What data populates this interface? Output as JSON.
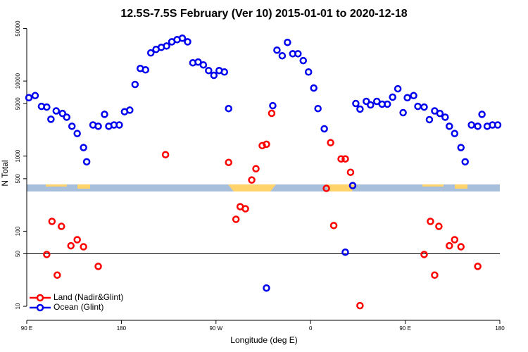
{
  "chart_data": {
    "type": "scatter",
    "title": "12.5S-7.5S February (Ver 10)   2015-01-01 to 2020-12-18",
    "x_label": "Longitude (deg E)",
    "y_label": "N Total",
    "log_y": true,
    "xlim": [
      90,
      540
    ],
    "ylim": [
      6.5,
      54000
    ],
    "xticks": [
      {
        "value": 90,
        "label": "90 E"
      },
      180,
      {
        "value": 270,
        "label": "90 W"
      },
      {
        "value": 360,
        "label": "0"
      },
      {
        "value": 450,
        "label": "90 E"
      },
      {
        "value": 540,
        "label": "180"
      }
    ],
    "yticks": [
      10,
      50,
      100,
      500,
      1000,
      5000,
      10000,
      50000
    ],
    "reference_line": 50,
    "legend": "bottom-left",
    "series": [
      {
        "name": "Land (Nadir&Glint)",
        "color": "#ff0000",
        "x": [
          109,
          114,
          119,
          123,
          132,
          138,
          144,
          158,
          222,
          282,
          289,
          293,
          298,
          304,
          308,
          314,
          318,
          323,
          375,
          379,
          382,
          389,
          393,
          398,
          407,
          468,
          474,
          478,
          482,
          492,
          497,
          503,
          519
        ],
        "values": [
          49,
          135,
          26,
          116,
          64,
          77,
          62,
          34,
          1045,
          824,
          144,
          212,
          199,
          481,
          679,
          1380,
          1440,
          3720,
          372,
          1510,
          119,
          918,
          918,
          609,
          10.2,
          49,
          135,
          26,
          116,
          64,
          77,
          62,
          34
        ]
      },
      {
        "name": "Ocean (Glint)",
        "color": "#0000ee",
        "x": [
          92,
          98,
          104,
          109,
          113,
          118,
          124,
          128,
          133,
          138,
          144,
          147,
          153,
          158,
          164,
          168,
          173,
          178,
          183,
          188,
          193,
          198,
          203,
          208,
          213,
          218,
          223,
          228,
          233,
          238,
          243,
          248,
          253,
          258,
          263,
          268,
          273,
          278,
          282,
          318,
          324,
          328,
          333,
          338,
          343,
          348,
          353,
          358,
          363,
          367,
          373,
          393,
          400,
          403,
          407,
          413,
          417,
          423,
          428,
          433,
          438,
          443,
          448,
          452,
          458,
          462,
          468,
          473,
          478,
          483,
          488,
          492,
          497,
          503,
          507,
          513,
          519,
          523,
          528,
          533,
          538
        ],
        "values": [
          6000,
          6400,
          4600,
          4500,
          3100,
          4000,
          3700,
          3300,
          2500,
          2000,
          1300,
          840,
          2600,
          2500,
          3600,
          2500,
          2600,
          2600,
          3900,
          4100,
          9000,
          14700,
          14100,
          23700,
          26400,
          28100,
          29300,
          33300,
          35600,
          37200,
          33300,
          17500,
          17900,
          16400,
          13800,
          11900,
          13800,
          13200,
          4300,
          17.5,
          4700,
          25800,
          21700,
          32700,
          23100,
          23100,
          18700,
          13200,
          8070,
          4300,
          2310,
          52.5,
          405,
          5020,
          4230,
          5360,
          4810,
          5360,
          4920,
          4920,
          6100,
          7890,
          3790,
          6000,
          6400,
          4600,
          4500,
          3060,
          4000,
          3700,
          3300,
          2500,
          2000,
          1300,
          840,
          2600,
          2500,
          3600,
          2500,
          2600,
          2600
        ]
      }
    ]
  }
}
